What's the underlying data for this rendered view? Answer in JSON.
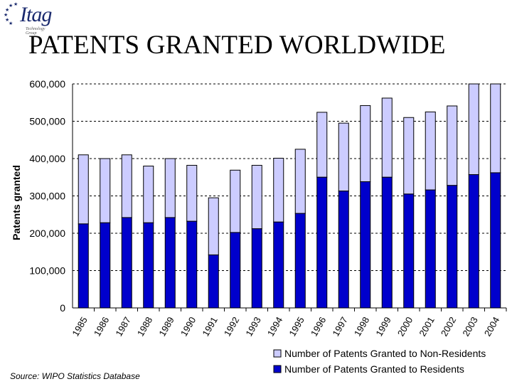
{
  "slide": {
    "title": "PATENTS GRANTED WORLDWIDE",
    "source": "Source: WIPO Statistics Database",
    "logo": {
      "text": "Itag",
      "subtext": "Technology Group",
      "icon": "stars-logo-icon"
    }
  },
  "colors": {
    "residents": "#0000cc",
    "non_residents": "#ccccff",
    "bar_outline": "#000000",
    "grid": "#000000"
  },
  "chart_data": {
    "type": "bar",
    "stacked": true,
    "title": "",
    "xlabel": "",
    "ylabel": "Patents granted",
    "ylim": [
      0,
      600000
    ],
    "yticks": [
      0,
      100000,
      200000,
      300000,
      400000,
      500000,
      600000
    ],
    "ytick_labels": [
      "0",
      "100,000",
      "200,000",
      "300,000",
      "400,000",
      "500,000",
      "600,000"
    ],
    "grid": "horizontal dashed",
    "legend_placement": "bottom-right",
    "categories": [
      "1985",
      "1986",
      "1987",
      "1988",
      "1989",
      "1990",
      "1991",
      "1992",
      "1993",
      "1994",
      "1995",
      "1996",
      "1997",
      "1998",
      "1999",
      "2000",
      "2001",
      "2002",
      "2003",
      "2004"
    ],
    "series": [
      {
        "name": "Number of Patents Granted to Residents",
        "values": [
          225000,
          228000,
          242000,
          228000,
          242000,
          232000,
          142000,
          202000,
          212000,
          230000,
          253000,
          350000,
          313000,
          338000,
          350000,
          305000,
          316000,
          328000,
          357000,
          362000
        ]
      },
      {
        "name": "Number of Patents Granted to Non-Residents",
        "values": [
          185000,
          172000,
          168000,
          152000,
          158000,
          150000,
          153000,
          167000,
          170000,
          171000,
          172000,
          174000,
          182000,
          204000,
          212000,
          205000,
          209000,
          213000,
          243000,
          238000
        ]
      }
    ],
    "legend": [
      "Number of Patents Granted to Non-Residents",
      "Number of Patents Granted to Residents"
    ]
  }
}
